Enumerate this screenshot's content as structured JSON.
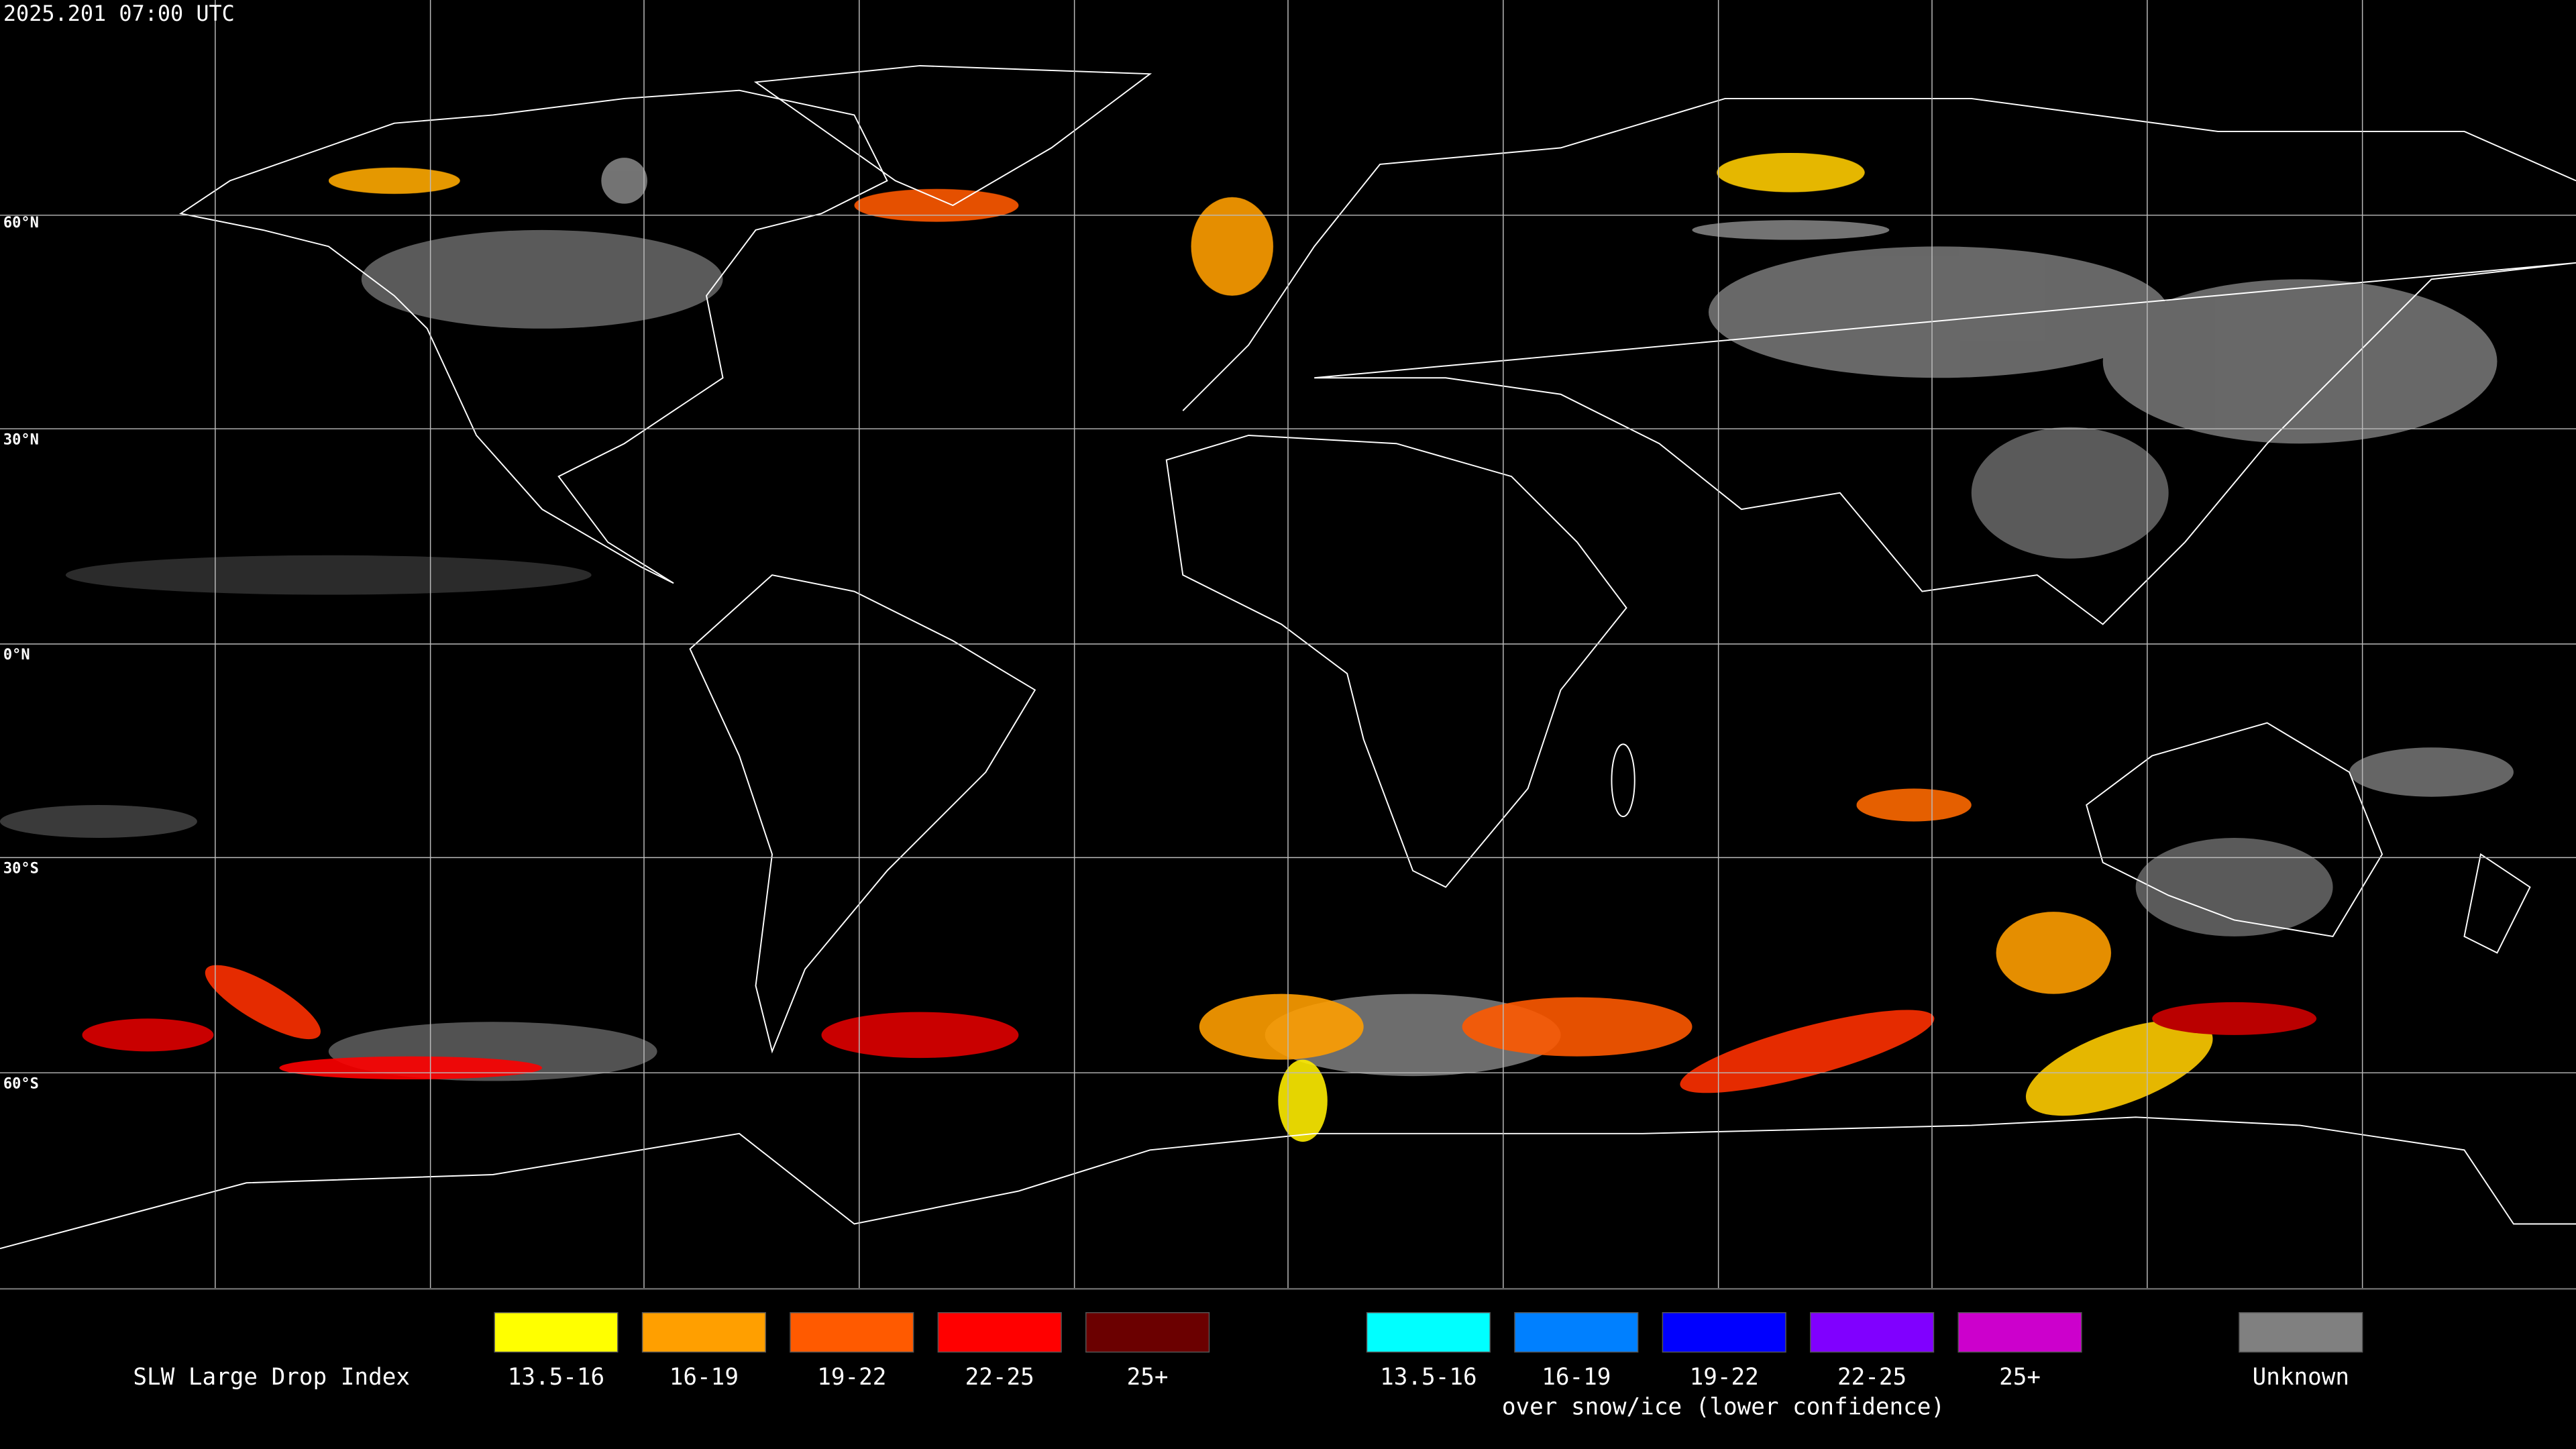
{
  "header": {
    "timestamp": "2025.201 07:00 UTC"
  },
  "map": {
    "latitude_labels": [
      "60°N",
      "30°N",
      "0°N",
      "30°S",
      "60°S"
    ]
  },
  "legend": {
    "title": "SLW Large Drop Index",
    "items": [
      {
        "label": "13.5-16",
        "color": "#ffff00"
      },
      {
        "label": "16-19",
        "color": "#ff9f00"
      },
      {
        "label": "19-22",
        "color": "#ff5a00"
      },
      {
        "label": "22-25",
        "color": "#ff0000"
      },
      {
        "label": "25+",
        "color": "#6b0000"
      }
    ],
    "snow_ice_items": [
      {
        "label": "13.5-16",
        "color": "#00ffff"
      },
      {
        "label": "16-19",
        "color": "#0080ff"
      },
      {
        "label": "19-22",
        "color": "#0000ff"
      },
      {
        "label": "22-25",
        "color": "#8000ff"
      },
      {
        "label": "25+",
        "color": "#cc00cc"
      }
    ],
    "snow_ice_note": "over snow/ice (lower confidence)",
    "unknown": {
      "label": "Unknown",
      "color": "#808080"
    }
  }
}
